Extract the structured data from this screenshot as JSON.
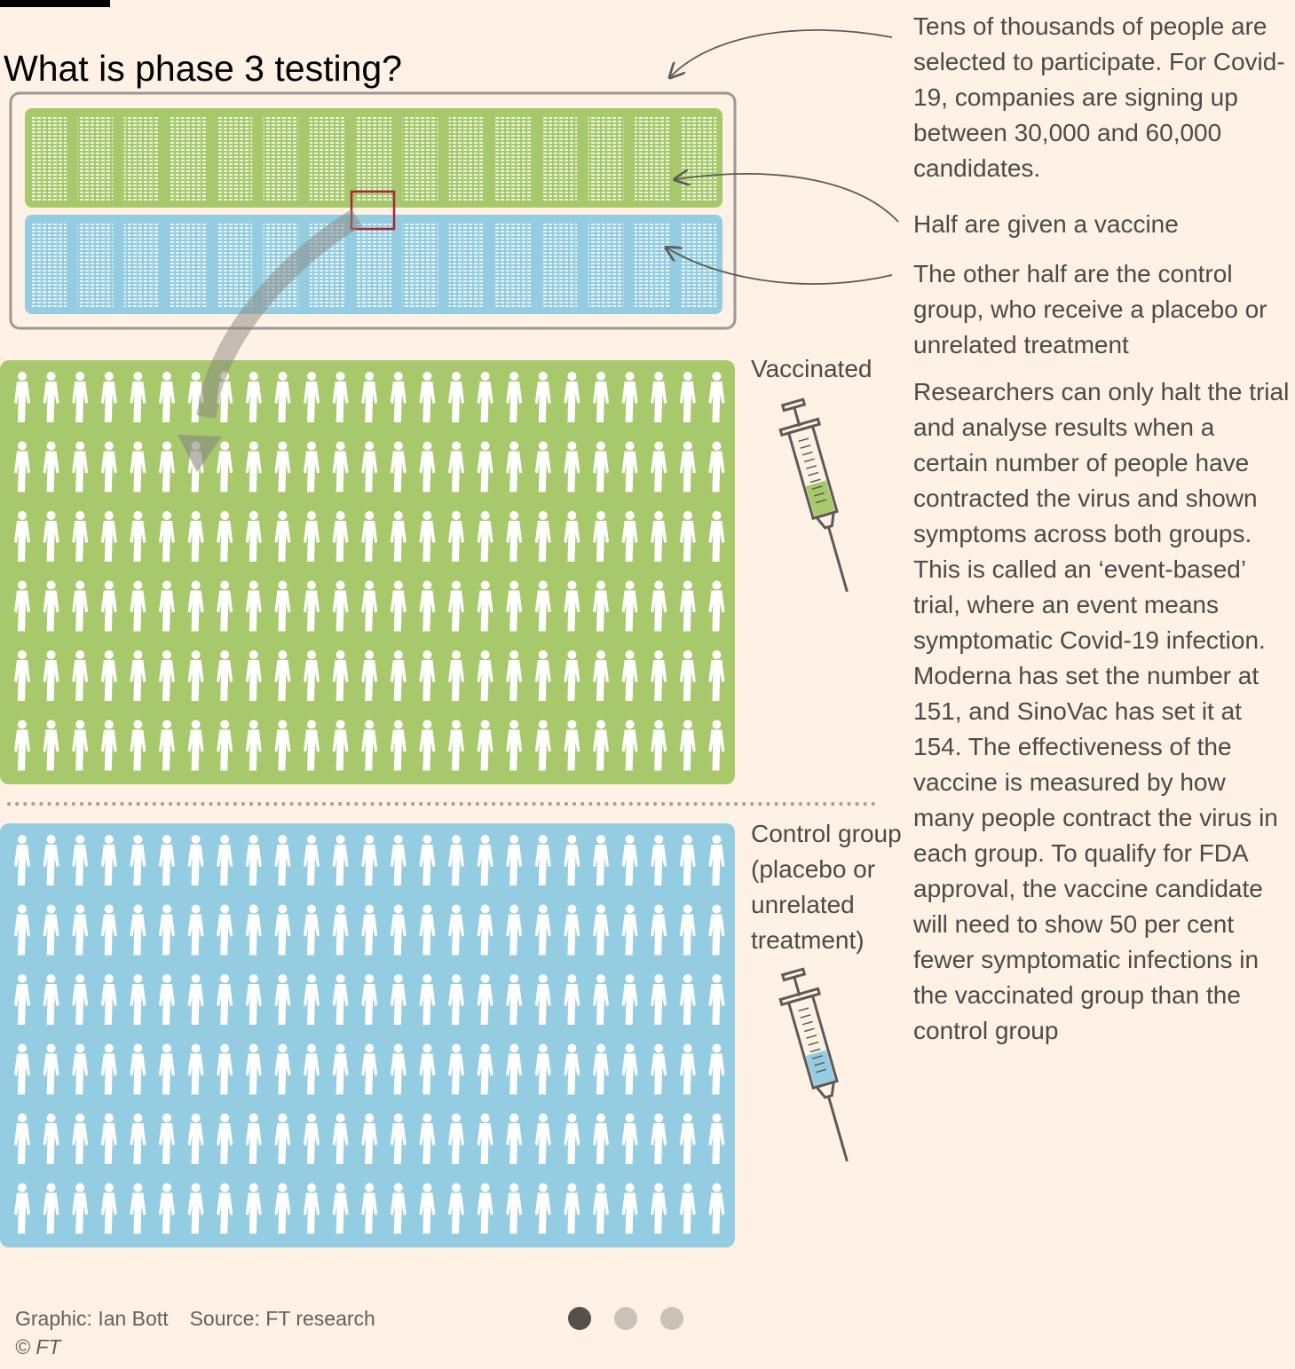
{
  "title": "What is phase 3 testing?",
  "annotations": {
    "participants": "Tens of thousands of people are selected to participate. For Covid-19, companies are signing up between 30,000 and 60,000 candidates.",
    "vaccine_half": "Half are given a vaccine",
    "control_half": "The other half are the control group, who receive a placebo or unrelated treatment",
    "event_based": "Researchers can only halt the trial and analyse results when a certain number of people have contracted the virus and shown symptoms across both groups. This is called an ‘event-based’ trial, where an event means symptomatic Covid-19 infection. Moderna has set the number at 151, and SinoVac has set it at 154. The effectiveness of the vaccine is measured by how many people contract the virus in each group. To qualify for FDA approval, the vaccine candidate will need to show 50 per cent fewer symptomatic infections in the vaccinated group than the control group"
  },
  "groups": {
    "vaccinated": "Vaccinated",
    "control": "Control group (placebo or unrelated treatment)"
  },
  "footer": {
    "graphic": "Graphic: Ian Bott",
    "source": "Source: FT research",
    "copyright": "© FT"
  },
  "pagination": {
    "total": 3,
    "active": 1
  },
  "colors": {
    "background": "#fff1e5",
    "vaccinated": "#a7c96b",
    "control": "#94cde1",
    "highlight": "#a62631",
    "text": "#4e4a47"
  },
  "icons": {
    "syringe_vaccinated": "syringe-icon",
    "syringe_control": "syringe-icon"
  }
}
